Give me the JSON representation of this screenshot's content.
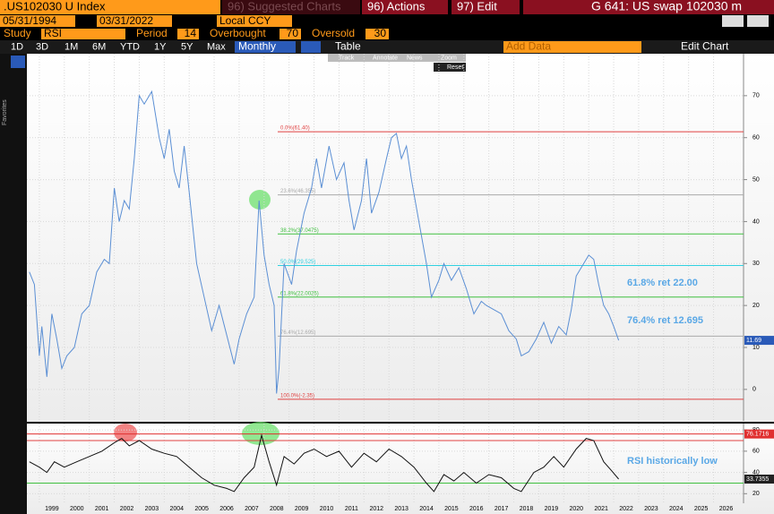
{
  "toolbar": {
    "ticker": ".US102030 U  Index",
    "suggested": "96) Suggested Charts",
    "actions": "96) Actions",
    "edit": "97) Edit",
    "title": "G 641: US swap 102030 m",
    "start_date": "05/31/1994",
    "end_date": "03/31/2022",
    "currency": "Local CCY",
    "study_label": "Study",
    "study": "RSI",
    "period_label": "Period",
    "period": 14,
    "overbought_label": "Overbought",
    "overbought": 70,
    "oversold_label": "Oversold",
    "oversold": 30,
    "ranges": [
      "1D",
      "3D",
      "1M",
      "6M",
      "YTD",
      "1Y",
      "5Y",
      "Max"
    ],
    "frequency": "Monthly",
    "table": "Table",
    "add_data": "Add Data",
    "edit_chart": "Edit Chart",
    "tools": [
      "Track",
      "Annotate",
      "News",
      "Zoom"
    ],
    "reset": "Reset",
    "favorites": "Favorites"
  },
  "chart_data": [
    {
      "type": "line",
      "x": [
        1998.6,
        1998.8,
        1999.0,
        1999.1,
        1999.3,
        1999.5,
        1999.7,
        1999.9,
        2000.1,
        2000.4,
        2000.7,
        2001.0,
        2001.3,
        2001.6,
        2001.8,
        2002.0,
        2002.2,
        2002.4,
        2002.6,
        2002.8,
        2003.0,
        2003.2,
        2003.5,
        2003.8,
        2004.0,
        2004.2,
        2004.4,
        2004.6,
        2004.8,
        2005.0,
        2005.3,
        2005.6,
        2005.9,
        2006.2,
        2006.5,
        2006.8,
        2007.0,
        2007.3,
        2007.6,
        2007.8,
        2008.0,
        2008.2,
        2008.4,
        2008.5,
        2008.6,
        2008.8,
        2009.1,
        2009.3,
        2009.6,
        2009.9,
        2010.1,
        2010.3,
        2010.6,
        2010.9,
        2011.2,
        2011.4,
        2011.6,
        2011.9,
        2012.1,
        2012.3,
        2012.6,
        2012.9,
        2013.1,
        2013.3,
        2013.5,
        2013.7,
        2013.9,
        2014.2,
        2014.5,
        2014.7,
        2015.0,
        2015.2,
        2015.5,
        2015.8,
        2016.1,
        2016.4,
        2016.7,
        2016.9,
        2017.2,
        2017.5,
        2017.8,
        2018.1,
        2018.3,
        2018.6,
        2018.9,
        2019.2,
        2019.5,
        2019.8,
        2020.1,
        2020.3,
        2020.5,
        2020.8,
        2021.0,
        2021.2,
        2021.4,
        2021.6,
        2021.8,
        2022.0,
        2022.2
      ],
      "series": [
        {
          "color": "#5b8fd4",
          "values": [
            28,
            25,
            8,
            15,
            3,
            18,
            12,
            5,
            8,
            10,
            18,
            20,
            28,
            31,
            30,
            48,
            40,
            45,
            43,
            55,
            70,
            68,
            71,
            60,
            55,
            62,
            52,
            48,
            58,
            47,
            30,
            22,
            14,
            20,
            13,
            6,
            12,
            18,
            22,
            45,
            32,
            25,
            20,
            -1,
            5,
            30,
            25,
            33,
            42,
            48,
            55,
            48,
            58,
            50,
            54,
            45,
            38,
            45,
            55,
            42,
            47,
            55,
            60,
            61,
            55,
            58,
            50,
            40,
            30,
            22,
            26,
            30,
            26,
            29,
            24,
            18,
            21,
            20,
            19,
            18,
            14,
            12,
            8,
            9,
            12,
            16,
            11,
            15,
            13,
            19,
            27,
            30,
            32,
            31,
            25,
            20,
            18,
            15,
            11.69
          ]
        }
      ],
      "xlim": [
        1998.5,
        2027.2
      ],
      "xticks": [
        1999,
        2000,
        2001,
        2002,
        2003,
        2004,
        2005,
        2006,
        2007,
        2008,
        2009,
        2010,
        2011,
        2012,
        2013,
        2014,
        2015,
        2016,
        2017,
        2018,
        2019,
        2020,
        2021,
        2022,
        2023,
        2024,
        2025,
        2026
      ],
      "ylim": [
        -7.5,
        80
      ],
      "yticks": [
        0,
        10,
        20,
        30,
        40,
        50,
        60,
        70
      ],
      "grid": true,
      "last_value": 11.69,
      "fib_levels": [
        {
          "value": 61.4,
          "label": "0.0%(61.40)",
          "color": "#e04040"
        },
        {
          "value": 46.355,
          "label": "23.6%(46.355)",
          "color": "#aaaaaa"
        },
        {
          "value": 37.0475,
          "label": "38.2%(37.0475)",
          "color": "#40c040"
        },
        {
          "value": 29.525,
          "label": "50.0%(29.525)",
          "color": "#30d0e0"
        },
        {
          "value": 22.0025,
          "label": "61.8%(22.0025)",
          "color": "#40c040"
        },
        {
          "value": 12.695,
          "label": "76.4%(12.695)",
          "color": "#aaaaaa"
        },
        {
          "value": -2.35,
          "label": "100.0%(-2.35)",
          "color": "#e04040"
        }
      ],
      "annotations": [
        "61.8% ret 22.00",
        "76.4% ret 12.695"
      ]
    },
    {
      "type": "line",
      "x": [
        1998.6,
        1999.0,
        1999.3,
        1999.6,
        2000.0,
        2000.5,
        2001.0,
        2001.5,
        2002.0,
        2002.3,
        2002.6,
        2003.0,
        2003.5,
        2004.0,
        2004.5,
        2005.0,
        2005.5,
        2006.0,
        2006.5,
        2006.8,
        2007.2,
        2007.6,
        2007.9,
        2008.2,
        2008.5,
        2008.8,
        2009.2,
        2009.6,
        2010.0,
        2010.5,
        2011.0,
        2011.5,
        2012.0,
        2012.5,
        2013.0,
        2013.5,
        2014.0,
        2014.5,
        2014.8,
        2015.2,
        2015.6,
        2016.0,
        2016.5,
        2017.0,
        2017.5,
        2018.0,
        2018.3,
        2018.8,
        2019.2,
        2019.6,
        2020.0,
        2020.5,
        2020.9,
        2021.2,
        2021.6,
        2021.9,
        2022.2
      ],
      "series": [
        {
          "color": "#111111",
          "values": [
            50,
            45,
            40,
            50,
            45,
            50,
            55,
            60,
            68,
            72,
            65,
            70,
            62,
            58,
            55,
            45,
            35,
            28,
            25,
            22,
            35,
            45,
            75,
            50,
            28,
            55,
            48,
            58,
            62,
            55,
            60,
            45,
            58,
            50,
            62,
            55,
            45,
            30,
            22,
            38,
            32,
            40,
            30,
            38,
            35,
            25,
            22,
            40,
            45,
            55,
            45,
            62,
            72,
            70,
            50,
            42,
            33.7355
          ]
        }
      ],
      "xlim": [
        1998.5,
        2027.2
      ],
      "xticks": [
        1999,
        2000,
        2001,
        2002,
        2003,
        2004,
        2005,
        2006,
        2007,
        2008,
        2009,
        2010,
        2011,
        2012,
        2013,
        2014,
        2015,
        2016,
        2017,
        2018,
        2019,
        2020,
        2021,
        2022,
        2023,
        2024,
        2025,
        2026
      ],
      "ylim": [
        11,
        86
      ],
      "yticks": [
        20,
        40,
        60,
        80
      ],
      "grid": true,
      "last_value": 33.7355,
      "reference_lines": [
        {
          "value": 76.1716,
          "color": "#e03030"
        }
      ],
      "annotations": [
        "RSI historically low"
      ]
    }
  ]
}
